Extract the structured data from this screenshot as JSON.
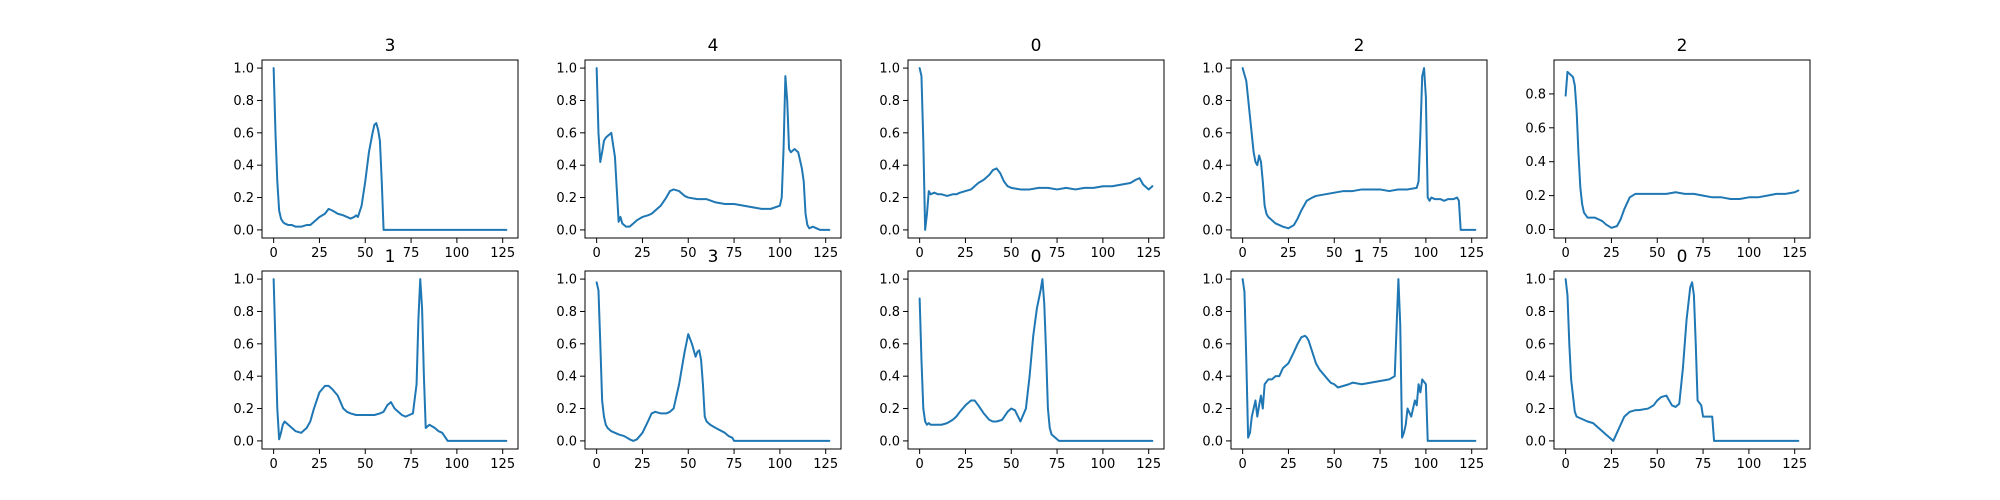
{
  "chart_data": {
    "type": "line",
    "layout": "grid-2x5",
    "line_color": "#1f77b4",
    "x_ticks": [
      0,
      25,
      50,
      75,
      100,
      125
    ],
    "xlim": [
      -6.35,
      133.35
    ],
    "grid": false,
    "legend": "none",
    "panels": [
      {
        "title": "3",
        "ylim": [
          -0.05,
          1.05
        ],
        "y_ticks": [
          0.0,
          0.2,
          0.4,
          0.6,
          0.8,
          1.0
        ],
        "x": [
          0,
          1,
          2,
          3,
          4,
          5,
          6,
          8,
          10,
          12,
          15,
          18,
          20,
          22,
          25,
          28,
          30,
          32,
          35,
          38,
          40,
          42,
          44,
          45,
          46,
          48,
          50,
          52,
          54,
          55,
          56,
          57,
          58,
          59,
          60,
          127
        ],
        "y": [
          1.0,
          0.6,
          0.3,
          0.12,
          0.07,
          0.05,
          0.04,
          0.03,
          0.03,
          0.02,
          0.02,
          0.03,
          0.03,
          0.05,
          0.08,
          0.1,
          0.13,
          0.12,
          0.1,
          0.09,
          0.08,
          0.07,
          0.08,
          0.09,
          0.08,
          0.15,
          0.3,
          0.48,
          0.6,
          0.65,
          0.66,
          0.62,
          0.55,
          0.3,
          0.0,
          0.0
        ]
      },
      {
        "title": "4",
        "ylim": [
          -0.05,
          1.05
        ],
        "y_ticks": [
          0.0,
          0.2,
          0.4,
          0.6,
          0.8,
          1.0
        ],
        "x": [
          0,
          1,
          2,
          3,
          4,
          5,
          6,
          8,
          10,
          11,
          12,
          13,
          14,
          16,
          18,
          20,
          22,
          25,
          28,
          30,
          32,
          35,
          38,
          40,
          42,
          45,
          48,
          50,
          55,
          60,
          65,
          70,
          75,
          80,
          85,
          90,
          95,
          100,
          101,
          102,
          103,
          104,
          105,
          106,
          108,
          110,
          112,
          113,
          114,
          115,
          116,
          118,
          120,
          122,
          125,
          127
        ],
        "y": [
          1.0,
          0.6,
          0.42,
          0.48,
          0.55,
          0.57,
          0.58,
          0.6,
          0.45,
          0.25,
          0.05,
          0.08,
          0.04,
          0.02,
          0.02,
          0.04,
          0.06,
          0.08,
          0.09,
          0.1,
          0.12,
          0.15,
          0.2,
          0.24,
          0.25,
          0.24,
          0.21,
          0.2,
          0.19,
          0.19,
          0.17,
          0.16,
          0.16,
          0.15,
          0.14,
          0.13,
          0.13,
          0.15,
          0.2,
          0.5,
          0.95,
          0.8,
          0.5,
          0.48,
          0.5,
          0.48,
          0.38,
          0.3,
          0.1,
          0.03,
          0.01,
          0.02,
          0.01,
          0.0,
          0.0,
          0.0
        ]
      },
      {
        "title": "0",
        "ylim": [
          -0.05,
          1.05
        ],
        "y_ticks": [
          0.0,
          0.2,
          0.4,
          0.6,
          0.8,
          1.0
        ],
        "x": [
          0,
          1,
          2,
          3,
          4,
          5,
          6,
          8,
          10,
          12,
          15,
          18,
          20,
          22,
          25,
          28,
          30,
          32,
          35,
          38,
          40,
          42,
          44,
          46,
          48,
          50,
          55,
          60,
          65,
          70,
          75,
          80,
          85,
          90,
          95,
          100,
          105,
          110,
          115,
          118,
          120,
          122,
          125,
          127
        ],
        "y": [
          1.0,
          0.95,
          0.55,
          0.0,
          0.1,
          0.24,
          0.22,
          0.23,
          0.22,
          0.22,
          0.21,
          0.22,
          0.22,
          0.23,
          0.24,
          0.25,
          0.27,
          0.29,
          0.31,
          0.34,
          0.37,
          0.38,
          0.35,
          0.3,
          0.27,
          0.26,
          0.25,
          0.25,
          0.26,
          0.26,
          0.25,
          0.26,
          0.25,
          0.26,
          0.26,
          0.27,
          0.27,
          0.28,
          0.29,
          0.31,
          0.32,
          0.28,
          0.25,
          0.27
        ]
      },
      {
        "title": "2",
        "ylim": [
          -0.05,
          1.05
        ],
        "y_ticks": [
          0.0,
          0.2,
          0.4,
          0.6,
          0.8,
          1.0
        ],
        "x": [
          0,
          2,
          4,
          6,
          7,
          8,
          9,
          10,
          11,
          12,
          13,
          14,
          16,
          18,
          20,
          22,
          25,
          28,
          30,
          32,
          35,
          38,
          40,
          45,
          50,
          55,
          60,
          65,
          70,
          75,
          80,
          85,
          90,
          95,
          96,
          97,
          98,
          99,
          100,
          101,
          102,
          103,
          105,
          108,
          110,
          112,
          115,
          117,
          118,
          119,
          120,
          122,
          125,
          127
        ],
        "y": [
          1.0,
          0.92,
          0.7,
          0.48,
          0.42,
          0.4,
          0.46,
          0.42,
          0.3,
          0.15,
          0.1,
          0.08,
          0.06,
          0.04,
          0.03,
          0.02,
          0.01,
          0.03,
          0.07,
          0.12,
          0.18,
          0.2,
          0.21,
          0.22,
          0.23,
          0.24,
          0.24,
          0.25,
          0.25,
          0.25,
          0.24,
          0.25,
          0.25,
          0.26,
          0.3,
          0.6,
          0.95,
          1.0,
          0.82,
          0.2,
          0.18,
          0.2,
          0.19,
          0.19,
          0.18,
          0.19,
          0.19,
          0.2,
          0.18,
          0.0,
          0.0,
          0.0,
          0.0,
          0.0
        ]
      },
      {
        "title": "2",
        "ylim": [
          -0.05,
          1.0
        ],
        "y_ticks": [
          0.0,
          0.2,
          0.4,
          0.6,
          0.8
        ],
        "x": [
          0,
          1,
          2,
          4,
          5,
          6,
          7,
          8,
          9,
          10,
          12,
          14,
          16,
          18,
          20,
          22,
          25,
          28,
          30,
          32,
          35,
          38,
          40,
          45,
          50,
          55,
          60,
          65,
          70,
          75,
          80,
          85,
          90,
          95,
          100,
          105,
          110,
          115,
          120,
          125,
          127
        ],
        "y": [
          0.79,
          0.93,
          0.92,
          0.9,
          0.85,
          0.7,
          0.45,
          0.25,
          0.15,
          0.1,
          0.07,
          0.07,
          0.07,
          0.06,
          0.05,
          0.03,
          0.01,
          0.02,
          0.06,
          0.12,
          0.19,
          0.21,
          0.21,
          0.21,
          0.21,
          0.21,
          0.22,
          0.21,
          0.21,
          0.2,
          0.19,
          0.19,
          0.18,
          0.18,
          0.19,
          0.19,
          0.2,
          0.21,
          0.21,
          0.22,
          0.23
        ]
      },
      {
        "title": "1",
        "ylim": [
          -0.05,
          1.05
        ],
        "y_ticks": [
          0.0,
          0.2,
          0.4,
          0.6,
          0.8,
          1.0
        ],
        "x": [
          0,
          1,
          2,
          3,
          4,
          5,
          6,
          8,
          10,
          12,
          15,
          18,
          20,
          22,
          25,
          28,
          30,
          32,
          35,
          38,
          40,
          42,
          45,
          50,
          55,
          58,
          60,
          62,
          64,
          66,
          70,
          72,
          74,
          76,
          78,
          79,
          80,
          81,
          82,
          83,
          85,
          88,
          90,
          92,
          95,
          127
        ],
        "y": [
          1.0,
          0.6,
          0.2,
          0.01,
          0.05,
          0.1,
          0.12,
          0.1,
          0.08,
          0.06,
          0.05,
          0.08,
          0.12,
          0.2,
          0.3,
          0.34,
          0.34,
          0.32,
          0.28,
          0.2,
          0.18,
          0.17,
          0.16,
          0.16,
          0.16,
          0.17,
          0.18,
          0.22,
          0.24,
          0.2,
          0.16,
          0.15,
          0.16,
          0.17,
          0.35,
          0.75,
          1.0,
          0.82,
          0.4,
          0.08,
          0.1,
          0.08,
          0.06,
          0.05,
          0.0,
          0.0
        ]
      },
      {
        "title": "3",
        "ylim": [
          -0.05,
          1.05
        ],
        "y_ticks": [
          0.0,
          0.2,
          0.4,
          0.6,
          0.8,
          1.0
        ],
        "x": [
          0,
          1,
          2,
          3,
          4,
          5,
          6,
          8,
          10,
          12,
          15,
          18,
          20,
          22,
          25,
          28,
          30,
          32,
          35,
          38,
          40,
          42,
          45,
          48,
          50,
          52,
          54,
          55,
          56,
          57,
          58,
          59,
          60,
          62,
          65,
          70,
          72,
          74,
          75,
          127
        ],
        "y": [
          0.98,
          0.93,
          0.6,
          0.25,
          0.15,
          0.1,
          0.08,
          0.06,
          0.05,
          0.04,
          0.03,
          0.01,
          0.0,
          0.01,
          0.05,
          0.12,
          0.17,
          0.18,
          0.17,
          0.17,
          0.18,
          0.2,
          0.35,
          0.55,
          0.66,
          0.6,
          0.52,
          0.55,
          0.56,
          0.5,
          0.35,
          0.15,
          0.12,
          0.1,
          0.08,
          0.05,
          0.03,
          0.02,
          0.0,
          0.0
        ]
      },
      {
        "title": "0",
        "ylim": [
          -0.05,
          1.05
        ],
        "y_ticks": [
          0.0,
          0.2,
          0.4,
          0.6,
          0.8,
          1.0
        ],
        "x": [
          0,
          1,
          2,
          3,
          4,
          5,
          6,
          8,
          10,
          12,
          15,
          18,
          20,
          22,
          25,
          28,
          30,
          32,
          35,
          38,
          40,
          42,
          45,
          48,
          50,
          52,
          55,
          58,
          60,
          62,
          64,
          66,
          67,
          68,
          69,
          70,
          71,
          72,
          74,
          76,
          127
        ],
        "y": [
          0.88,
          0.5,
          0.2,
          0.12,
          0.1,
          0.11,
          0.1,
          0.1,
          0.1,
          0.1,
          0.11,
          0.13,
          0.15,
          0.18,
          0.22,
          0.25,
          0.25,
          0.22,
          0.17,
          0.13,
          0.12,
          0.12,
          0.13,
          0.18,
          0.2,
          0.19,
          0.12,
          0.2,
          0.4,
          0.65,
          0.82,
          0.93,
          1.0,
          0.85,
          0.55,
          0.2,
          0.08,
          0.04,
          0.02,
          0.0,
          0.0
        ]
      },
      {
        "title": "1",
        "ylim": [
          -0.05,
          1.05
        ],
        "y_ticks": [
          0.0,
          0.2,
          0.4,
          0.6,
          0.8,
          1.0
        ],
        "x": [
          0,
          1,
          2,
          3,
          4,
          5,
          6,
          7,
          8,
          9,
          10,
          11,
          12,
          14,
          16,
          18,
          20,
          22,
          25,
          28,
          30,
          32,
          34,
          35,
          36,
          38,
          40,
          42,
          45,
          48,
          50,
          52,
          55,
          58,
          60,
          65,
          70,
          75,
          80,
          83,
          84,
          85,
          86,
          87,
          88,
          89,
          90,
          92,
          94,
          95,
          96,
          97,
          98,
          100,
          101,
          102,
          103,
          105,
          108,
          110,
          127
        ],
        "y": [
          1.0,
          0.92,
          0.5,
          0.02,
          0.05,
          0.15,
          0.2,
          0.25,
          0.15,
          0.22,
          0.28,
          0.2,
          0.35,
          0.38,
          0.38,
          0.4,
          0.4,
          0.45,
          0.48,
          0.55,
          0.6,
          0.64,
          0.65,
          0.64,
          0.62,
          0.55,
          0.48,
          0.44,
          0.4,
          0.36,
          0.35,
          0.33,
          0.34,
          0.35,
          0.36,
          0.35,
          0.36,
          0.37,
          0.38,
          0.4,
          0.7,
          1.0,
          0.72,
          0.02,
          0.05,
          0.1,
          0.2,
          0.15,
          0.25,
          0.22,
          0.35,
          0.3,
          0.38,
          0.35,
          0.0,
          0.0,
          0.0,
          0.0,
          0.0,
          0.0,
          0.0
        ]
      },
      {
        "title": "0",
        "ylim": [
          -0.05,
          1.05
        ],
        "y_ticks": [
          0.0,
          0.2,
          0.4,
          0.6,
          0.8,
          1.0
        ],
        "x": [
          0,
          1,
          2,
          3,
          4,
          5,
          6,
          8,
          10,
          12,
          15,
          18,
          20,
          22,
          25,
          26,
          28,
          30,
          32,
          35,
          38,
          40,
          45,
          48,
          50,
          52,
          55,
          58,
          60,
          62,
          64,
          66,
          68,
          69,
          70,
          71,
          72,
          74,
          75,
          76,
          78,
          80,
          81,
          82,
          85,
          90,
          95,
          100,
          105,
          110,
          115,
          120,
          125,
          127
        ],
        "y": [
          1.0,
          0.9,
          0.6,
          0.38,
          0.28,
          0.18,
          0.15,
          0.14,
          0.13,
          0.12,
          0.11,
          0.08,
          0.06,
          0.04,
          0.01,
          0.0,
          0.05,
          0.1,
          0.15,
          0.18,
          0.19,
          0.19,
          0.2,
          0.22,
          0.25,
          0.27,
          0.28,
          0.22,
          0.21,
          0.23,
          0.45,
          0.75,
          0.95,
          0.98,
          0.9,
          0.6,
          0.25,
          0.22,
          0.15,
          0.15,
          0.15,
          0.15,
          0.0,
          0.0,
          0.0,
          0.0,
          0.0,
          0.0,
          0.0,
          0.0,
          0.0,
          0.0,
          0.0,
          0.0
        ]
      }
    ]
  }
}
